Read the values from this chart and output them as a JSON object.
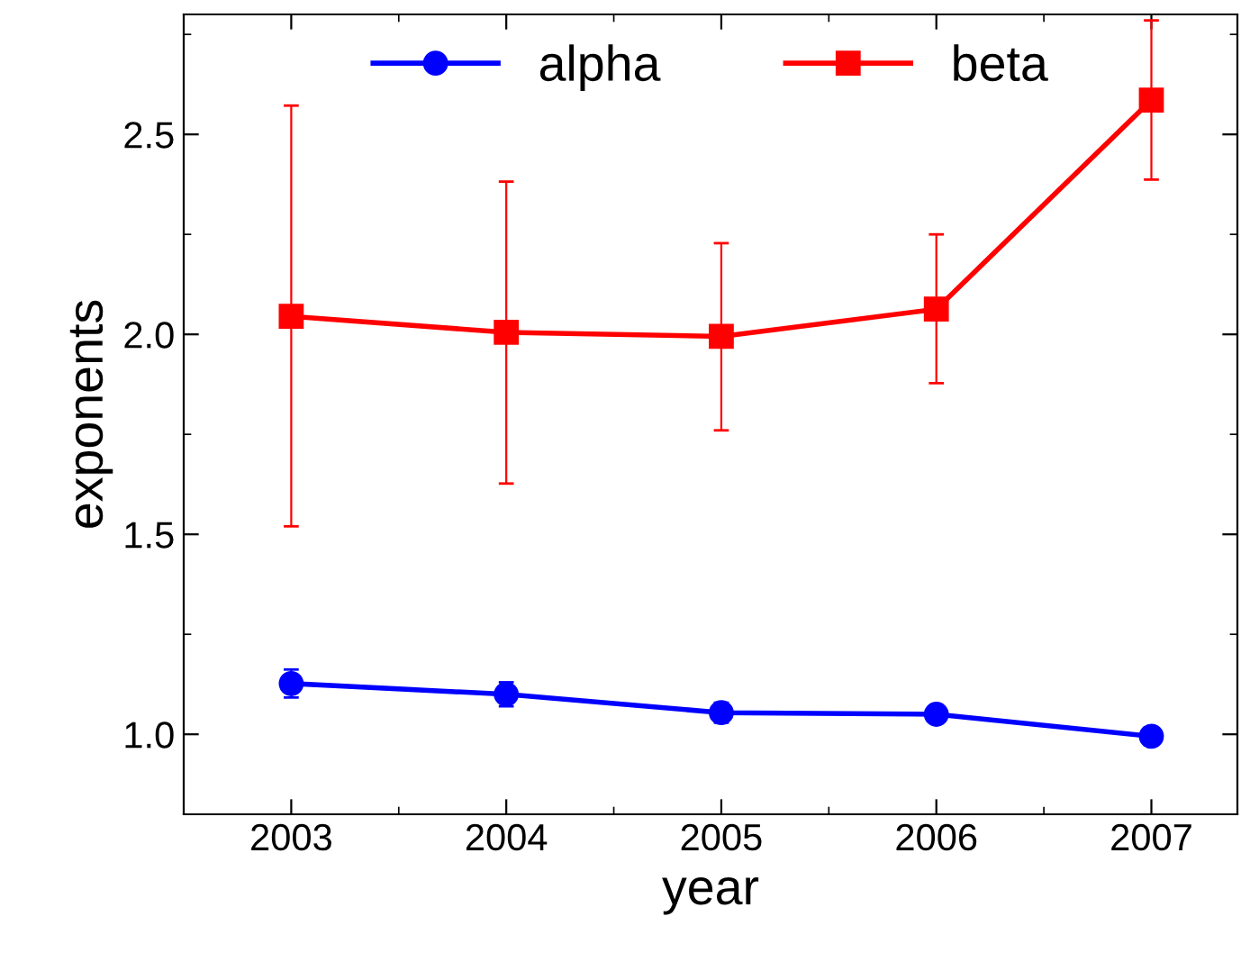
{
  "chart_data": {
    "type": "line",
    "xlabel": "year",
    "ylabel": "exponents",
    "x": [
      2003,
      2004,
      2005,
      2006,
      2007
    ],
    "xlim": [
      2002.5,
      2007.4
    ],
    "xticks": [
      2003,
      2004,
      2005,
      2006,
      2007
    ],
    "ylim": [
      0.8,
      2.8
    ],
    "yticks": [
      {
        "value": 1.0,
        "label": "1.0"
      },
      {
        "value": 1.5,
        "label": "1.5"
      },
      {
        "value": 2.0,
        "label": "2.0"
      },
      {
        "value": 2.5,
        "label": "2.5"
      }
    ],
    "grid": false,
    "legend": "top",
    "line_style": "solid",
    "series": [
      {
        "name": "alpha",
        "color": "#0000ff",
        "marker": "circle",
        "values": [
          1.127,
          1.1,
          1.054,
          1.05,
          0.995
        ],
        "errors": [
          0.035,
          0.03,
          0.025,
          0.02,
          0.02
        ]
      },
      {
        "name": "beta",
        "color": "#ff0000",
        "marker": "square",
        "values": [
          2.045,
          2.005,
          1.995,
          2.063,
          2.586
        ],
        "errors": [
          [
            1.52,
            2.572
          ],
          [
            1.627,
            2.382
          ],
          [
            1.76,
            2.228
          ],
          [
            1.878,
            2.25
          ],
          [
            2.387,
            2.785
          ]
        ]
      }
    ]
  }
}
